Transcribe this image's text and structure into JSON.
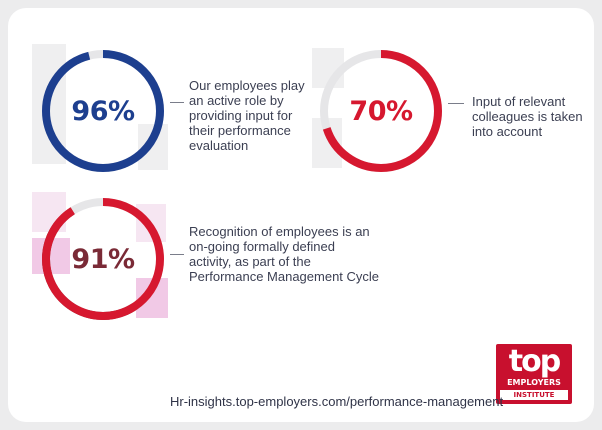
{
  "chart_data": {
    "type": "donut",
    "series": [
      {
        "value": 96,
        "label": "96%",
        "description": [
          "Our employees play",
          "an active role by",
          "providing input for",
          "their performance",
          "evaluation"
        ],
        "color": "#1d3f8f",
        "text_color": "#1d3f8f"
      },
      {
        "value": 70,
        "label": "70%",
        "description": [
          "Input of relevant",
          "colleagues is taken",
          "into account"
        ],
        "color": "#d6182f",
        "text_color": "#d6182f"
      },
      {
        "value": 91,
        "label": "91%",
        "description": [
          "Recognition of employees is an",
          "on-going formally defined",
          "activity, as part of the",
          "Performance Management Cycle"
        ],
        "color": "#d6182f",
        "color_secondary": "#7a2a36",
        "text_color": "#7a2a36"
      }
    ],
    "track_color": "#e6e6e8"
  },
  "footer": {
    "source": "Hr-insights.top-employers.com/performance-management"
  },
  "logo": {
    "top": "top",
    "employers": "EMPLOYERS",
    "institute": "INSTITUTE",
    "color": "#c8102e"
  }
}
